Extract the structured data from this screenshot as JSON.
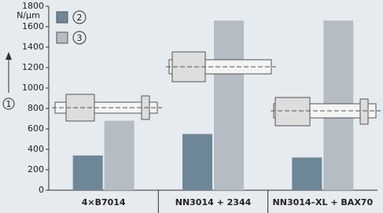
{
  "chart_data": {
    "type": "bar",
    "unit": "N/µm",
    "y_label": "1",
    "categories": [
      "4×B7014",
      "NN3014 + 2344",
      "NN3014–XL + BAX70"
    ],
    "series": [
      {
        "name": "2",
        "color": "#6e8797",
        "values": [
          340,
          550,
          320
        ]
      },
      {
        "name": "3",
        "color": "#b5bcc3",
        "values": [
          680,
          1660,
          1660
        ]
      }
    ],
    "ylim": [
      0,
      1800
    ],
    "yticks": [
      0,
      200,
      400,
      600,
      800,
      1000,
      1200,
      1400,
      1600,
      1800
    ]
  }
}
